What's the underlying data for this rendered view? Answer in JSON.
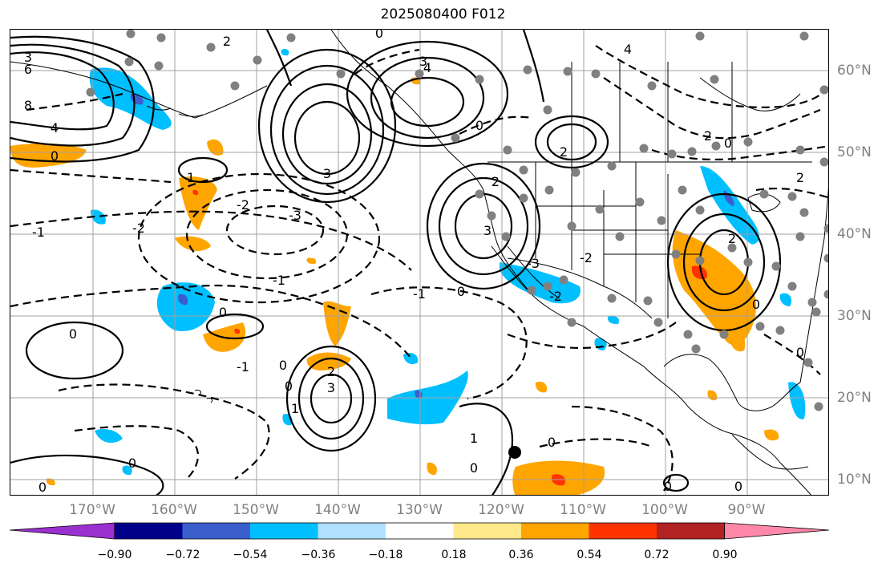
{
  "title": "2025080400 F012",
  "lon_labels": [
    "170°W",
    "160°W",
    "150°W",
    "140°W",
    "130°W",
    "120°W",
    "110°W",
    "100°W",
    "90°W"
  ],
  "lat_labels": [
    "60°N",
    "50°N",
    "40°N",
    "30°N",
    "20°N",
    "10°N"
  ],
  "colorbar": {
    "ticks": [
      "−0.90",
      "−0.72",
      "−0.54",
      "−0.36",
      "−0.18",
      "0.18",
      "0.36",
      "0.54",
      "0.72",
      "0.90"
    ],
    "colors": [
      "#9b30d0",
      "#00008b",
      "#3a5fcd",
      "#00bfff",
      "#b0e2ff",
      "#ffffff",
      "#ffe88a",
      "#ffa500",
      "#ff3300",
      "#b22222",
      "#ff88aa"
    ]
  },
  "colors": {
    "axis_text": "#808080",
    "grid": "#a0a0a0",
    "station_dots": "#808080",
    "contours": "#000000"
  },
  "contour_labels": [
    "0",
    "1",
    "2",
    "3",
    "-1",
    "-2",
    "-3",
    "4",
    "6",
    "8"
  ]
}
